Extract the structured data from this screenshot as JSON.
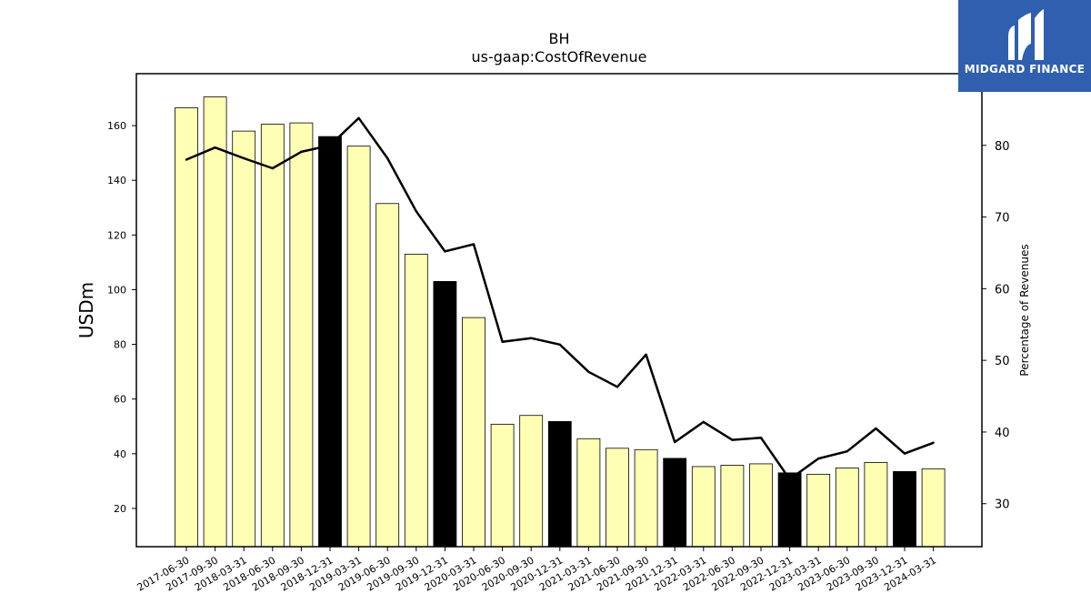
{
  "brand": {
    "name": "MIDGARD FINANCE",
    "color": "#2f5fae"
  },
  "chart_data": {
    "type": "bar",
    "title": "BH",
    "subtitle": "us-gaap:CostOfRevenue",
    "ylabel": "USDm",
    "y2label": "Percentage of Revenues",
    "ylim": [
      6,
      179
    ],
    "y2lim": [
      24,
      90
    ],
    "yticks": [
      20,
      40,
      60,
      80,
      100,
      120,
      140,
      160
    ],
    "y2ticks": [
      30,
      40,
      50,
      60,
      70,
      80
    ],
    "categories": [
      "2017-06-30",
      "2017-09-30",
      "2018-03-31",
      "2018-06-30",
      "2018-09-30",
      "2018-12-31",
      "2019-03-31",
      "2019-06-30",
      "2019-09-30",
      "2019-12-31",
      "2020-03-31",
      "2020-06-30",
      "2020-09-30",
      "2020-12-31",
      "2021-03-31",
      "2021-06-30",
      "2021-09-30",
      "2021-12-31",
      "2022-03-31",
      "2022-06-30",
      "2022-09-30",
      "2022-12-31",
      "2023-03-31",
      "2023-06-30",
      "2023-09-30",
      "2023-12-31",
      "2024-03-31"
    ],
    "series": [
      {
        "type": "bar",
        "axis": "left",
        "values": [
          166.5,
          170.5,
          158.0,
          160.5,
          161.0,
          156.0,
          152.5,
          131.5,
          113.0,
          103.0,
          89.8,
          50.8,
          54.0,
          51.8,
          45.5,
          42.0,
          41.5,
          38.3,
          35.3,
          35.8,
          36.3,
          33.0,
          32.5,
          34.8,
          36.8,
          33.5,
          34.5
        ],
        "highlight": [
          false,
          false,
          false,
          false,
          false,
          true,
          false,
          false,
          false,
          true,
          false,
          false,
          false,
          true,
          false,
          false,
          false,
          true,
          false,
          false,
          false,
          true,
          false,
          false,
          false,
          true,
          false
        ]
      },
      {
        "type": "line",
        "axis": "right",
        "values": [
          78.0,
          79.7,
          78.2,
          76.8,
          79.1,
          80.0,
          83.8,
          78.2,
          70.8,
          65.2,
          66.2,
          52.6,
          53.1,
          52.2,
          48.4,
          46.3,
          50.8,
          38.6,
          41.4,
          38.9,
          39.2,
          33.4,
          36.3,
          37.3,
          40.5,
          37.0,
          38.5
        ]
      }
    ],
    "colors": {
      "bar": "#ffffb3",
      "bar_highlight": "#000000",
      "bar_edge": "#000000",
      "line": "#000000"
    },
    "grid": false
  }
}
